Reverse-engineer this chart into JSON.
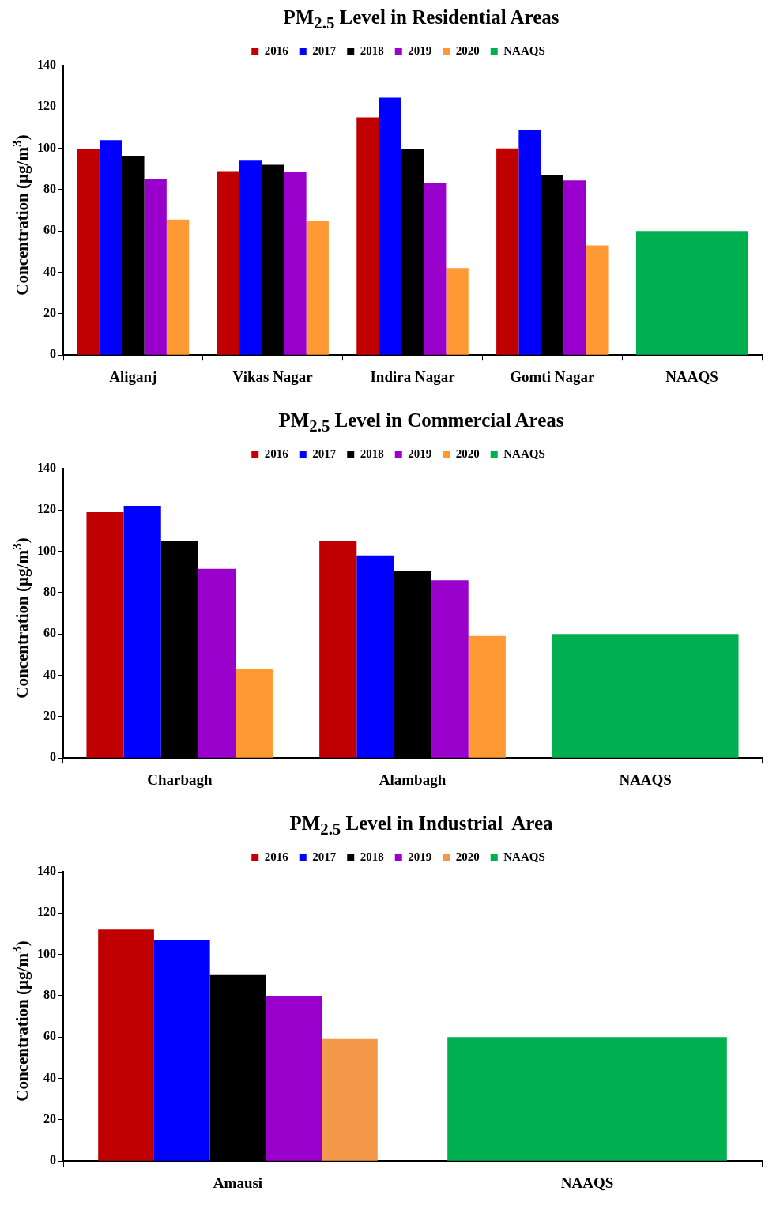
{
  "chart_data": [
    {
      "type": "bar",
      "title": "PM$_{2.5}$ Level in Residential Areas",
      "ylabel": "Concentration (µg/m$^{3}$)",
      "categories": [
        "Aliganj",
        "Vikas Nagar",
        "Indira Nagar",
        "Gomti Nagar",
        "NAAQS"
      ],
      "ylim": [
        0,
        140
      ],
      "yticks": [
        0,
        20,
        40,
        60,
        80,
        100,
        120,
        140
      ],
      "legend": "top",
      "series": [
        {
          "name": "2016",
          "color": "#c00000",
          "values": [
            99.5,
            89,
            115,
            100,
            null
          ]
        },
        {
          "name": "2017",
          "color": "#0000ff",
          "values": [
            104,
            94,
            124.5,
            109,
            null
          ]
        },
        {
          "name": "2018",
          "color": "#000000",
          "values": [
            96,
            92,
            99.5,
            87,
            null
          ]
        },
        {
          "name": "2019",
          "color": "#9900cc",
          "values": [
            85,
            88.5,
            83,
            84.5,
            null
          ]
        },
        {
          "name": "2020",
          "color": "#ff9933",
          "values": [
            65.5,
            65,
            42,
            53,
            null
          ]
        },
        {
          "name": "NAAQS",
          "color": "#00b050",
          "values": [
            null,
            null,
            null,
            null,
            60
          ]
        }
      ]
    },
    {
      "type": "bar",
      "title": "PM$_{2.5}$ Level in Commercial Areas",
      "ylabel": "Concentration (µg/m$^{3}$)",
      "categories": [
        "Charbagh",
        "Alambagh",
        "NAAQS"
      ],
      "ylim": [
        0,
        140
      ],
      "yticks": [
        0,
        20,
        40,
        60,
        80,
        100,
        120,
        140
      ],
      "legend": "top",
      "series": [
        {
          "name": "2016",
          "color": "#c00000",
          "values": [
            119,
            105,
            null
          ]
        },
        {
          "name": "2017",
          "color": "#0000ff",
          "values": [
            122,
            98,
            null
          ]
        },
        {
          "name": "2018",
          "color": "#000000",
          "values": [
            105,
            90.5,
            null
          ]
        },
        {
          "name": "2019",
          "color": "#9900cc",
          "values": [
            91.5,
            86,
            null
          ]
        },
        {
          "name": "2020",
          "color": "#ff9933",
          "values": [
            43,
            59,
            null
          ]
        },
        {
          "name": "NAAQS",
          "color": "#00b050",
          "values": [
            null,
            null,
            60
          ]
        }
      ]
    },
    {
      "type": "bar",
      "title": "PM$_{2.5}$ Level in Industrial  Area",
      "ylabel": "Concentration (µg/m$^{3}$)",
      "categories": [
        "Amausi",
        "NAAQS"
      ],
      "ylim": [
        0,
        140
      ],
      "yticks": [
        0,
        20,
        40,
        60,
        80,
        100,
        120,
        140
      ],
      "legend": "top",
      "series": [
        {
          "name": "2016",
          "color": "#c00000",
          "values": [
            112,
            null
          ]
        },
        {
          "name": "2017",
          "color": "#0000ff",
          "values": [
            107,
            null
          ]
        },
        {
          "name": "2018",
          "color": "#000000",
          "values": [
            90,
            null
          ]
        },
        {
          "name": "2019",
          "color": "#9900cc",
          "values": [
            80,
            null
          ]
        },
        {
          "name": "2020",
          "color": "#f4984a",
          "values": [
            59,
            null
          ]
        },
        {
          "name": "NAAQS",
          "color": "#00b050",
          "values": [
            null,
            60
          ]
        }
      ]
    }
  ]
}
